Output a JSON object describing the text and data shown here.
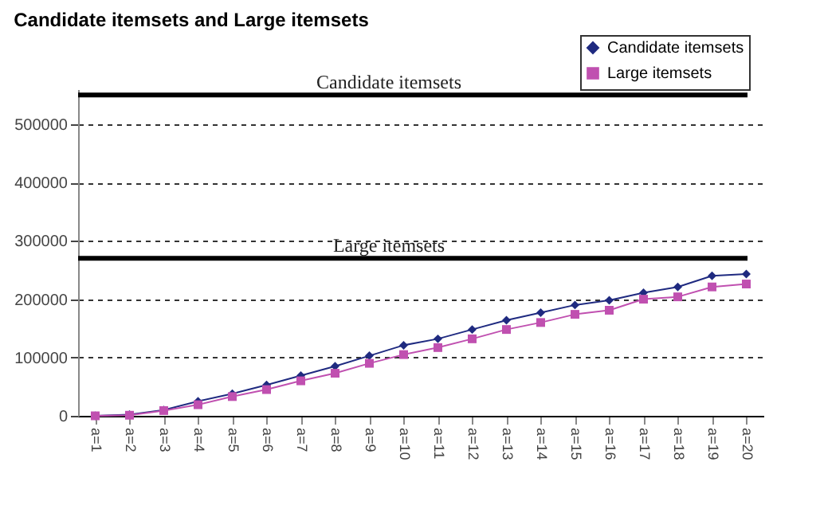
{
  "chart_data": {
    "type": "line",
    "title": "Candidate itemsets and Large itemsets",
    "categories": [
      "a=1",
      "a=2",
      "a=3",
      "a=4",
      "a=5",
      "a=6",
      "a=7",
      "a=8",
      "a=9",
      "a=10",
      "a=11",
      "a=12",
      "a=13",
      "a=14",
      "a=15",
      "a=16",
      "a=17",
      "a=18",
      "a=19",
      "a=20"
    ],
    "series": [
      {
        "name": "Candidate itemsets",
        "color": "#1f2a80",
        "marker": "diamond",
        "values": [
          0,
          2000,
          10000,
          25000,
          38000,
          53000,
          69000,
          85000,
          103000,
          121000,
          132000,
          148000,
          164000,
          177000,
          190000,
          198000,
          211000,
          221000,
          240000,
          243000
        ]
      },
      {
        "name": "Large itemsets",
        "color": "#c050b0",
        "marker": "square",
        "values": [
          0,
          1000,
          9000,
          19000,
          33000,
          45000,
          60000,
          73000,
          90000,
          105000,
          117000,
          132000,
          148000,
          160000,
          174000,
          181000,
          200000,
          204000,
          221000,
          226000
        ]
      }
    ],
    "ylim": [
      0,
      560000
    ],
    "yticks": [
      0,
      100000,
      200000,
      300000,
      400000,
      500000
    ],
    "grid": "y",
    "legend": "top right",
    "line_style": "solid",
    "ref_lines": [
      {
        "axis": "y",
        "value": 550000,
        "label": "Candidate itemsets",
        "color": "#000000"
      },
      {
        "axis": "y",
        "value": 270000,
        "label": "Large itemsets",
        "color": "#000000"
      }
    ]
  }
}
